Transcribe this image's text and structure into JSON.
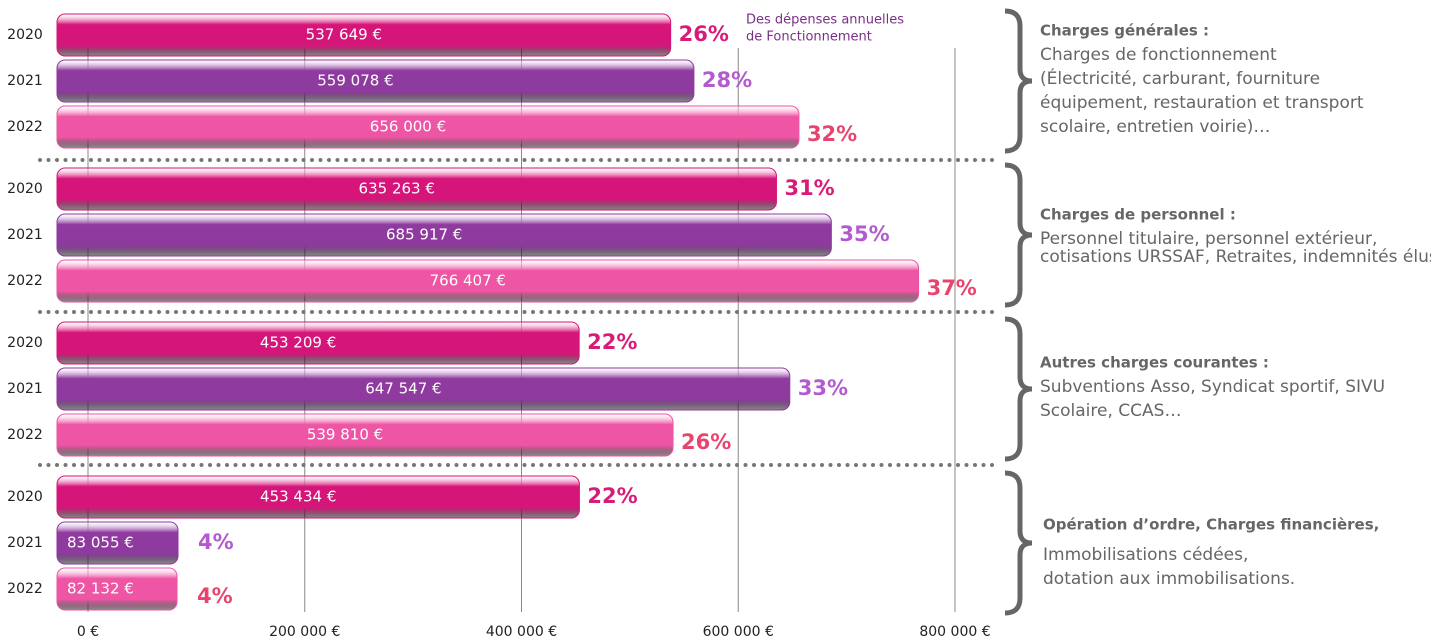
{
  "chart_data": {
    "type": "bar",
    "orientation": "horizontal",
    "annotation": [
      "Des dépenses annuelles",
      "de Fonctionnement"
    ],
    "groups": [
      {
        "title": "Charges générales :",
        "description": [
          "Charges de fonctionnement",
          "(Électricité, carburant, fourniture",
          "équipement, restauration et transport",
          "scolaire, entretien voirie)…"
        ]
      },
      {
        "title": "Charges de personnel :",
        "description": [
          "Personnel titulaire, personnel extérieur,",
          "cotisations URSSAF, Retraites, indemnités élus…"
        ]
      },
      {
        "title": "Autres charges courantes :",
        "description": [
          "Subventions Asso, Syndicat sportif, SIVU",
          "Scolaire, CCAS…"
        ]
      },
      {
        "title": "Opération d’ordre, Charges financières,",
        "description": [
          "Immobilisations cédées,",
          "dotation aux immobilisations."
        ]
      }
    ],
    "series": [
      {
        "name": "2020",
        "color": "#d6157a",
        "share_color": "#d81b78",
        "values": [
          537649,
          635263,
          453209,
          453434
        ],
        "value_labels": [
          "537 649 €",
          "635 263 €",
          "453 209 €",
          "453 434 €"
        ],
        "shares": [
          "26%",
          "31%",
          "22%",
          "22%"
        ]
      },
      {
        "name": "2021",
        "color": "#8e3a9e",
        "share_color": "#b35ad0",
        "values": [
          559078,
          685917,
          647547,
          83055
        ],
        "value_labels": [
          "559 078 €",
          "685 917 €",
          "647 547 €",
          "83 055 €"
        ],
        "shares": [
          "28%",
          "35%",
          "33%",
          "4%"
        ]
      },
      {
        "name": "2022",
        "color": "#ee55a4",
        "share_color": "#e8456e",
        "values": [
          656000,
          766407,
          539810,
          82132
        ],
        "value_labels": [
          "656 000 €",
          "766 407 €",
          "539 810 €",
          "82 132 €"
        ],
        "shares": [
          "32%",
          "37%",
          "26%",
          "4%"
        ]
      }
    ],
    "xlim": [
      0,
      800000
    ],
    "xticks": [
      {
        "value": 0,
        "label": "0 €"
      },
      {
        "value": 200000,
        "label": "200 000 €"
      },
      {
        "value": 400000,
        "label": "400 000 €"
      },
      {
        "value": 600000,
        "label": "600 000 €"
      },
      {
        "value": 800000,
        "label": "800 000 €"
      }
    ],
    "grid": true
  }
}
